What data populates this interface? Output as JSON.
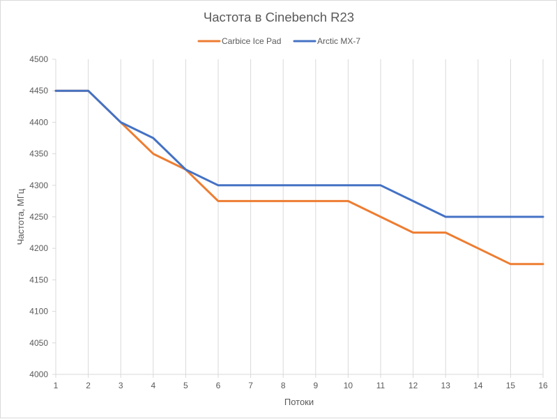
{
  "chart_data": {
    "type": "line",
    "title": "Частота в Cinebench R23",
    "xlabel": "Потоки",
    "ylabel": "Частота, МГц",
    "x": [
      1,
      2,
      3,
      4,
      5,
      6,
      7,
      8,
      9,
      10,
      11,
      12,
      13,
      14,
      15,
      16
    ],
    "xlim": [
      1,
      16
    ],
    "ylim": [
      4000,
      4500
    ],
    "y_ticks": [
      4000,
      4050,
      4100,
      4150,
      4200,
      4250,
      4300,
      4350,
      4400,
      4450,
      4500
    ],
    "grid": "vertical",
    "legend_position": "top",
    "series": [
      {
        "name": "Carbice Ice Pad",
        "color": "#ED7D31",
        "values": [
          4450,
          4450,
          4400,
          4350,
          4325,
          4275,
          4275,
          4275,
          4275,
          4275,
          4250,
          4225,
          4225,
          4200,
          4175,
          4175
        ]
      },
      {
        "name": "Arctic MX-7",
        "color": "#4472C4",
        "values": [
          4450,
          4450,
          4400,
          4375,
          4325,
          4300,
          4300,
          4300,
          4300,
          4300,
          4300,
          4275,
          4250,
          4250,
          4250,
          4250
        ]
      }
    ]
  }
}
